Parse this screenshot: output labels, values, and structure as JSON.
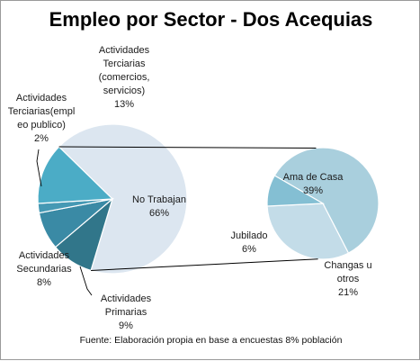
{
  "chart_data": {
    "type": "pie",
    "subtype": "pie-of-pie",
    "title": "Empleo por Sector - Dos Acequias",
    "source": "Fuente: Elaboración propia en base a encuestas 8% población",
    "main_pie": {
      "slices": [
        {
          "label_lines": [
            "No Trabajan",
            "66%"
          ],
          "value": 66,
          "color": "#dce6f0"
        },
        {
          "label_lines": [
            "Actividades",
            "Primarias",
            "9%"
          ],
          "value": 9,
          "color": "#31768a"
        },
        {
          "label_lines": [
            "Actividades",
            "Secundarias",
            "8%"
          ],
          "value": 8,
          "color": "#3a8aa5"
        },
        {
          "label_lines": [
            "Actividades",
            "Terciarias(empl",
            "eo publico)",
            "2%"
          ],
          "value": 2,
          "color": "#4599b4"
        },
        {
          "label_lines": [
            "Actividades",
            "Terciarias",
            "(comercios,",
            "servicios)",
            "13%"
          ],
          "value": 13,
          "color": "#4bacc6"
        }
      ]
    },
    "secondary_pie": {
      "breakdown_of": "No Trabajan",
      "slices": [
        {
          "label_lines": [
            "Ama de Casa",
            "39%"
          ],
          "value": 39,
          "color": "#a9cfdd"
        },
        {
          "label_lines": [
            "Changas u",
            "otros",
            "21%"
          ],
          "value": 21,
          "color": "#c3dce8"
        },
        {
          "label_lines": [
            "Jubilado",
            "6%"
          ],
          "value": 6,
          "color": "#84bfd3"
        }
      ]
    }
  }
}
